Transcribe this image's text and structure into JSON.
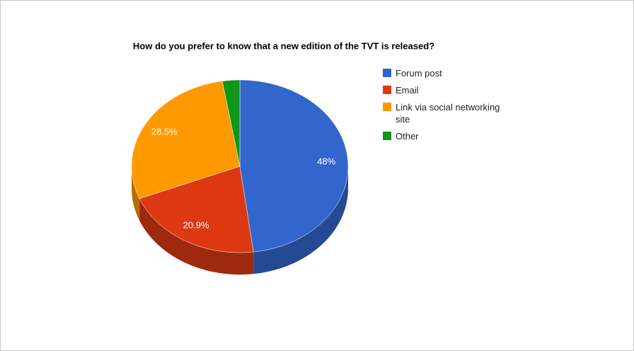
{
  "chart_data": {
    "type": "pie",
    "title": "How do you prefer to know that a new edition of the TVT is released?",
    "categories": [
      "Forum post",
      "Email",
      "Link via social networking site",
      "Other"
    ],
    "values": [
      48,
      20.9,
      28.5,
      2.6
    ],
    "value_labels": [
      "48%",
      "20.9%",
      "28.5%",
      null
    ],
    "colors": [
      "#3366cc",
      "#dc3912",
      "#ff9900",
      "#109618"
    ],
    "legend": "right",
    "three_d": true
  }
}
